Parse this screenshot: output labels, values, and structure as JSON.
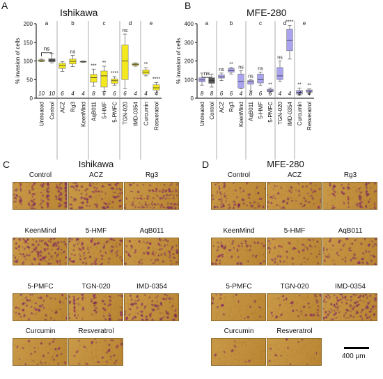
{
  "panels": {
    "A": {
      "letter": "A",
      "title": "Ishikawa"
    },
    "B": {
      "letter": "B",
      "title": "MFE-280"
    },
    "C": {
      "letter": "C",
      "title": "Ishikawa"
    },
    "D": {
      "letter": "D",
      "title": "MFE-280"
    }
  },
  "chart_data": [
    {
      "type": "box",
      "title": "Ishikawa",
      "ylabel": "% invasion of cells",
      "ylim": [
        0,
        200
      ],
      "yticks": [
        0,
        50,
        100,
        150,
        200
      ],
      "color": "#f4e81e",
      "control_color": "#555555",
      "categories": [
        "Untreated",
        "Control",
        "ACZ",
        "Rg3",
        "KeenMind",
        "AqB011",
        "5-HMF",
        "5-PMFC",
        "TGN-020",
        "IMD-0354",
        "Curcumin",
        "Resveratrol"
      ],
      "n": [
        "10",
        "10",
        "6",
        "4",
        "4",
        "8",
        "6",
        "6",
        "6",
        "4",
        "4",
        "4"
      ],
      "group_letters": [
        "a",
        "b",
        "c",
        "d",
        "e"
      ],
      "significance": [
        "",
        "",
        "",
        "ns",
        "",
        "***",
        "**",
        "****",
        "ns",
        "",
        "**",
        "****"
      ],
      "bracket_label": "ns",
      "boxes": [
        {
          "min": 98,
          "q1": 99,
          "median": 101,
          "q3": 103,
          "max": 105
        },
        {
          "min": 95,
          "q1": 98,
          "median": 101,
          "q3": 106,
          "max": 120
        },
        {
          "min": 72,
          "q1": 80,
          "median": 88,
          "q3": 94,
          "max": 98
        },
        {
          "min": 85,
          "q1": 92,
          "median": 99,
          "q3": 105,
          "max": 115
        },
        {
          "min": 96,
          "q1": 97,
          "median": 98,
          "q3": 99,
          "max": 100
        },
        {
          "min": 32,
          "q1": 43,
          "median": 55,
          "q3": 64,
          "max": 78
        },
        {
          "min": 18,
          "q1": 30,
          "median": 60,
          "q3": 73,
          "max": 86
        },
        {
          "min": 35,
          "q1": 40,
          "median": 47,
          "q3": 52,
          "max": 58
        },
        {
          "min": 25,
          "q1": 50,
          "median": 100,
          "q3": 143,
          "max": 172
        },
        {
          "min": 86,
          "q1": 88,
          "median": 91,
          "q3": 93,
          "max": 95
        },
        {
          "min": 60,
          "q1": 65,
          "median": 70,
          "q3": 76,
          "max": 82
        },
        {
          "min": 15,
          "q1": 22,
          "median": 28,
          "q3": 36,
          "max": 42
        }
      ]
    },
    {
      "type": "box",
      "title": "MFE-280",
      "ylabel": "% invasion of cells",
      "ylim": [
        0,
        400
      ],
      "yticks": [
        0,
        100,
        200,
        300,
        400
      ],
      "color": "#a9a3f0",
      "control_color": "#555555",
      "categories": [
        "Untreated",
        "Control",
        "ACZ",
        "Rg3",
        "KeenMind",
        "AqB011",
        "5-HMF",
        "5-PMFC",
        "TGN-020",
        "IMD-0354",
        "Curcumin",
        "Resveratrol"
      ],
      "n": [
        "8",
        "8",
        "6",
        "6",
        "4",
        "8",
        "6",
        "6",
        "4",
        "4",
        "4",
        "4"
      ],
      "group_letters": [
        "a",
        "b",
        "c",
        "d",
        "e"
      ],
      "significance": [
        "",
        "",
        "ns",
        "**",
        "ns",
        "ns",
        "ns",
        "**",
        "ns",
        "****",
        "**",
        "**"
      ],
      "bracket_label": "ns",
      "boxes": [
        {
          "min": 70,
          "q1": 88,
          "median": 98,
          "q3": 110,
          "max": 135
        },
        {
          "min": 60,
          "q1": 80,
          "median": 96,
          "q3": 110,
          "max": 130
        },
        {
          "min": 95,
          "q1": 108,
          "median": 115,
          "q3": 125,
          "max": 135
        },
        {
          "min": 130,
          "q1": 140,
          "median": 148,
          "q3": 160,
          "max": 165
        },
        {
          "min": 50,
          "q1": 55,
          "median": 90,
          "q3": 130,
          "max": 148
        },
        {
          "min": 40,
          "q1": 75,
          "median": 88,
          "q3": 95,
          "max": 100
        },
        {
          "min": 70,
          "q1": 82,
          "median": 100,
          "q3": 130,
          "max": 140
        },
        {
          "min": 28,
          "q1": 35,
          "median": 40,
          "q3": 48,
          "max": 55
        },
        {
          "min": 90,
          "q1": 100,
          "median": 120,
          "q3": 165,
          "max": 200
        },
        {
          "min": 210,
          "q1": 255,
          "median": 310,
          "q3": 370,
          "max": 390
        },
        {
          "min": 15,
          "q1": 22,
          "median": 32,
          "q3": 42,
          "max": 55
        },
        {
          "min": 25,
          "q1": 32,
          "median": 38,
          "q3": 45,
          "max": 50
        }
      ]
    }
  ],
  "micrographs": {
    "C": {
      "rows": [
        [
          "Control",
          "ACZ",
          "Rg3"
        ],
        [
          "KeenMind",
          "5-HMF",
          "AqB011"
        ],
        [
          "5-PMFC",
          "TGN-020",
          "IMD-0354"
        ],
        [
          "Curcumin",
          "Resveratrol"
        ]
      ],
      "density": [
        [
          0.8,
          0.7,
          0.65
        ],
        [
          0.8,
          0.55,
          0.45
        ],
        [
          0.35,
          0.45,
          0.6
        ],
        [
          0.2,
          0.2
        ]
      ]
    },
    "D": {
      "rows": [
        [
          "Control",
          "ACZ",
          "Rg3"
        ],
        [
          "KeenMind",
          "5-HMF",
          "AqB011"
        ],
        [
          "5-PMFC",
          "TGN-020",
          "IMD-0354"
        ],
        [
          "Curcumin",
          "Resveratrol"
        ]
      ],
      "density": [
        [
          0.45,
          0.4,
          0.45
        ],
        [
          0.35,
          0.35,
          0.4
        ],
        [
          0.12,
          0.25,
          0.7
        ],
        [
          0.06,
          0.08
        ]
      ]
    }
  },
  "scale_bar": {
    "label": "400 μm"
  },
  "colors": {
    "dot": "#7a2d5a",
    "bg": "#c9953f"
  }
}
